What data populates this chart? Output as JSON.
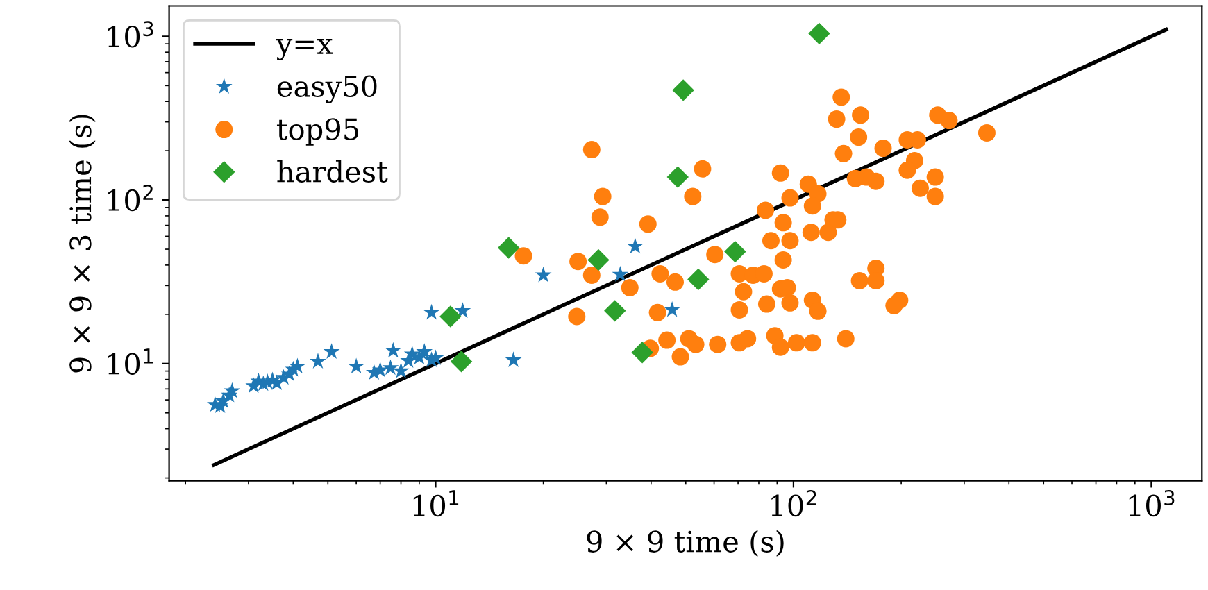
{
  "chart_data": {
    "type": "scatter",
    "xlabel": "9 × 9 time (s)",
    "ylabel": "9 × 9 × 3 time (s)",
    "log": "xy",
    "grid": false,
    "legend": "top left",
    "xlim": [
      1.8,
      1385
    ],
    "ylim": [
      1.92,
      1535
    ],
    "xticks": [
      {
        "value": 10,
        "label": "10$^{1}$"
      },
      {
        "value": 100,
        "label": "10$^{2}$"
      },
      {
        "value": 1000,
        "label": "10$^{3}$"
      }
    ],
    "yticks": [
      {
        "value": 10,
        "label": "10$^{1}$"
      },
      {
        "value": 100,
        "label": "10$^{2}$"
      },
      {
        "value": 1000,
        "label": "10$^{3}$"
      }
    ],
    "series": [
      {
        "name": "y=x",
        "type": "line",
        "color": "#000000",
        "marker": "none",
        "line_style": "solid",
        "x": [
          2.4,
          1100
        ],
        "values": [
          2.4,
          1100
        ]
      },
      {
        "name": "easy50",
        "color": "#1f77b4",
        "marker": "star",
        "x": [
          2.42,
          2.5,
          2.55,
          2.65,
          2.7,
          3.1,
          3.2,
          3.3,
          3.39,
          3.5,
          3.6,
          3.76,
          3.9,
          4.0,
          4.11,
          4.69,
          5.12,
          6.0,
          6.73,
          7.0,
          7.48,
          7.61,
          8.0,
          8.39,
          8.6,
          9.0,
          9.3,
          9.74,
          10.0,
          9.74,
          11.9,
          16.5,
          20.0,
          32.8,
          36.1,
          45.8
        ],
        "values": [
          5.6,
          5.5,
          5.9,
          6.4,
          6.8,
          7.3,
          7.8,
          7.5,
          7.7,
          7.9,
          7.6,
          8.2,
          8.6,
          9.2,
          9.6,
          10.3,
          11.8,
          9.6,
          8.8,
          9.1,
          9.4,
          12,
          9.0,
          10.4,
          11.4,
          10.9,
          11.8,
          10.5,
          10.8,
          20.5,
          21,
          10.5,
          34.7,
          35,
          52,
          21.3
        ]
      },
      {
        "name": "top95",
        "color": "#ff7f0e",
        "marker": "circle",
        "x": [
          17.6,
          27.3,
          29.3,
          28.8,
          39.2,
          55.7,
          52.3,
          25.0,
          27.3,
          34.9,
          42.4,
          46.7,
          24.8,
          41.7,
          39.8,
          44.3,
          48.3,
          51.0,
          53.3,
          61.4,
          70.6,
          74.4,
          60.3,
          70.6,
          72.5,
          77.1,
          82.7,
          70.6,
          84.2,
          92,
          96.1,
          97.8,
          113,
          117,
          88.7,
          92,
          102,
          113,
          140,
          83.5,
          92,
          97.8,
          110,
          117,
          113,
          93.6,
          86.5,
          97.8,
          93.6,
          112,
          129,
          125,
          136,
          154,
          132,
          152,
          138,
          149,
          153,
          178,
          208,
          222,
          218,
          208,
          253,
          272,
          347,
          249,
          226,
          249,
          170,
          160,
          170,
          170,
          198,
          191,
          133
        ],
        "values": [
          45.5,
          203,
          105,
          78.5,
          71.2,
          155,
          105,
          42.1,
          34.7,
          29.1,
          35.4,
          31.5,
          19.4,
          20.5,
          12.4,
          13.9,
          11.0,
          14.2,
          13.1,
          13.1,
          13.4,
          14.2,
          46.4,
          35.4,
          27.5,
          34.7,
          35.4,
          21.3,
          23.1,
          28.6,
          29.1,
          23.5,
          24.4,
          20.9,
          14.8,
          12.6,
          13.4,
          13.4,
          14.2,
          86.5,
          146,
          103,
          125,
          109,
          92,
          72.6,
          56.4,
          56.4,
          43,
          63.4,
          75.5,
          63.4,
          425,
          330,
          312,
          242,
          192,
          135,
          32.1,
          207,
          233,
          233,
          174,
          152,
          330,
          306,
          257,
          138,
          118,
          105,
          130,
          138,
          38.2,
          32.1,
          24.4,
          22.6,
          75.5
        ]
      },
      {
        "name": "hardest",
        "color": "#2ca02c",
        "marker": "diamond",
        "x": [
          16,
          11,
          11.8,
          49.2,
          47.5,
          28.5,
          31.7,
          37.8,
          54.2,
          68.7,
          118
        ],
        "values": [
          51,
          19.4,
          10.3,
          469,
          138,
          43,
          21,
          11.7,
          32.7,
          48.3,
          1040
        ]
      }
    ]
  }
}
